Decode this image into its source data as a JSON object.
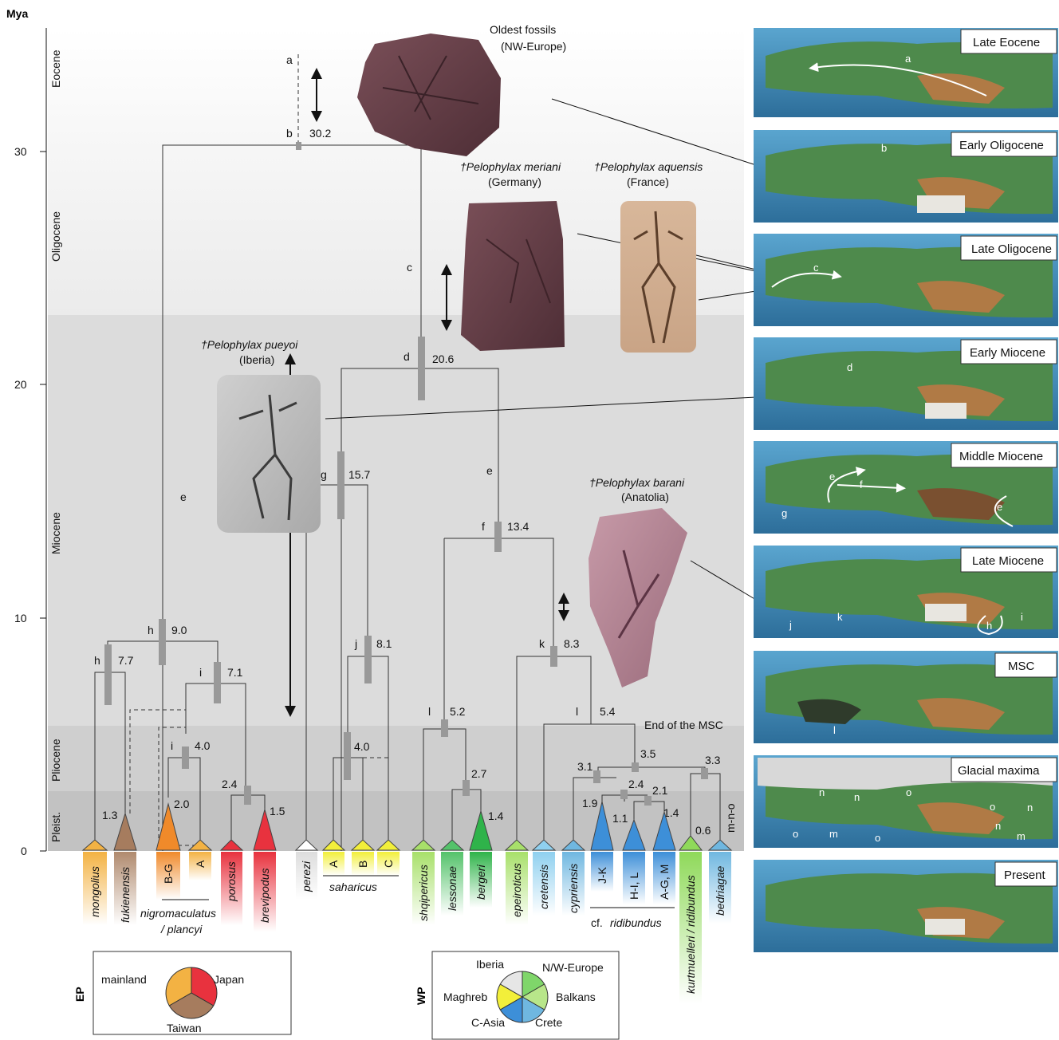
{
  "axis": {
    "unit_label": "Mya",
    "ticks": [
      {
        "value": 30,
        "label": "30"
      },
      {
        "value": 20,
        "label": "20"
      },
      {
        "value": 10,
        "label": "10"
      },
      {
        "value": 0,
        "label": "0"
      }
    ]
  },
  "epochs": [
    {
      "name": "Eocene"
    },
    {
      "name": "Oligocene"
    },
    {
      "name": "Miocene"
    },
    {
      "name": "Pliocene"
    },
    {
      "name": "Pleist."
    }
  ],
  "nodes": {
    "a": "a",
    "b": "b",
    "b_age": "30.2",
    "c": "c",
    "d": "d",
    "d_age": "20.6",
    "e_left": "e",
    "e_right": "e",
    "g": "g",
    "g_age": "15.7",
    "f": "f",
    "f_age": "13.4",
    "h_top": "h",
    "h_top_age": "9.0",
    "h_low": "h",
    "h_low_age": "7.7",
    "i_top": "i",
    "i_top_age": "7.1",
    "i_low": "i",
    "i_low_age": "4.0",
    "j": "j",
    "j_age": "8.1",
    "k": "k",
    "k_age": "8.3",
    "l_left": "l",
    "l_left_age": "5.2",
    "l_right": "l",
    "l_right_age": "5.4",
    "saharicus_age": "4.0",
    "n_31": "3.1",
    "n_35": "3.5",
    "n_33": "3.3",
    "n_24": "2.4",
    "n_21": "2.1",
    "n_19": "1.9",
    "n_11": "1.1",
    "n_14b": "1.4",
    "n_06": "0.6",
    "n_27": "2.7",
    "n_14": "1.4",
    "n_24p": "2.4",
    "n_15": "1.5",
    "n_13": "1.3",
    "n_20": "2.0",
    "mno": "m-n-o",
    "msc_end": "End of the MSC"
  },
  "fossils": {
    "oldest": {
      "line1": "Oldest fossils",
      "line2": "(NW-Europe)"
    },
    "meriani": {
      "name": "†Pelophylax meriani",
      "region": "(Germany)"
    },
    "aquensis": {
      "name": "†Pelophylax aquensis",
      "region": "(France)"
    },
    "pueyoi": {
      "name": "†Pelophylax pueyoi",
      "region": "(Iberia)"
    },
    "barani": {
      "name": "†Pelophylax barani",
      "region": "(Anatolia)"
    }
  },
  "taxa": [
    {
      "label": "mongolius",
      "italic": true,
      "color": "#f3b243"
    },
    {
      "label": "fukienensis",
      "italic": true,
      "color": "#b08a6e"
    },
    {
      "label": "B-G",
      "italic": false,
      "color": "#f08a2a"
    },
    {
      "label": "A",
      "italic": false,
      "color": "#f3b243"
    },
    {
      "label": "porosus",
      "italic": true,
      "color": "#e8323e"
    },
    {
      "label": "brevipodus",
      "italic": true,
      "color": "#e8323e"
    },
    {
      "label": "perezi",
      "italic": true,
      "color": "#ffffff"
    },
    {
      "label": "A",
      "italic": false,
      "color": "#f2ef3a"
    },
    {
      "label": "B",
      "italic": false,
      "color": "#f2ef3a"
    },
    {
      "label": "C",
      "italic": false,
      "color": "#f2ef3a"
    },
    {
      "label": "shqipericus",
      "italic": true,
      "color": "#a8e06a"
    },
    {
      "label": "lessonae",
      "italic": true,
      "color": "#54c26a"
    },
    {
      "label": "bergeri",
      "italic": true,
      "color": "#2fb34a"
    },
    {
      "label": "epeiroticus",
      "italic": true,
      "color": "#a8e06a"
    },
    {
      "label": "cretensis",
      "italic": true,
      "color": "#8fd0ef"
    },
    {
      "label": "cypriensis",
      "italic": true,
      "color": "#6fb7e0"
    },
    {
      "label": "J-K",
      "italic": false,
      "color": "#3d8fd8"
    },
    {
      "label": "H-I, L",
      "italic": false,
      "color": "#3d8fd8"
    },
    {
      "label": "A-G, M",
      "italic": false,
      "color": "#3d8fd8"
    },
    {
      "label": "kurtmuelleri / ridibundus",
      "italic": true,
      "color": "#8fd95a"
    },
    {
      "label": "bedriagae",
      "italic": true,
      "color": "#6fb7e0"
    }
  ],
  "groups": {
    "nigro_line1": "nigromaculatus",
    "nigro_line2": "/ plancyi",
    "saharicus": "saharicus",
    "ridi_prefix": "cf.",
    "ridi_name": "ridibundus"
  },
  "maps": [
    {
      "label": "Late Eocene"
    },
    {
      "label": "Early Oligocene"
    },
    {
      "label": "Late Oligocene"
    },
    {
      "label": "Early Miocene"
    },
    {
      "label": "Middle Miocene"
    },
    {
      "label": "Late Miocene"
    },
    {
      "label": "MSC"
    },
    {
      "label": "Glacial maxima"
    },
    {
      "label": "Present"
    }
  ],
  "map_marks": {
    "a": "a",
    "b": "b",
    "c": "c",
    "d": "d",
    "e1": "e",
    "f": "f",
    "g": "g",
    "e2": "e",
    "j": "j",
    "k": "k",
    "h": "h",
    "i": "i",
    "l": "l",
    "n1": "n",
    "n2": "n",
    "n3": "n",
    "n4": "n",
    "o1": "o",
    "o2": "o",
    "o3": "o",
    "o4": "o",
    "m1": "m",
    "m2": "m"
  },
  "legend_ep": {
    "title": "EP",
    "mainland": "mainland",
    "japan": "Japan",
    "taiwan": "Taiwan",
    "colors": {
      "mainland": "#f3b243",
      "japan": "#e8323e",
      "taiwan": "#a67c5e"
    }
  },
  "legend_wp": {
    "title": "WP",
    "iberia": "Iberia",
    "nweurope": "N/W-Europe",
    "maghreb": "Maghreb",
    "balkans": "Balkans",
    "casia": "C-Asia",
    "crete": "Crete",
    "colors": {
      "iberia": "#e6e6e6",
      "nweurope": "#7fd66a",
      "balkans": "#b8e68a",
      "crete": "#6fb7e0",
      "casia": "#3d8fd8",
      "maghreb": "#f2ef3a"
    }
  }
}
